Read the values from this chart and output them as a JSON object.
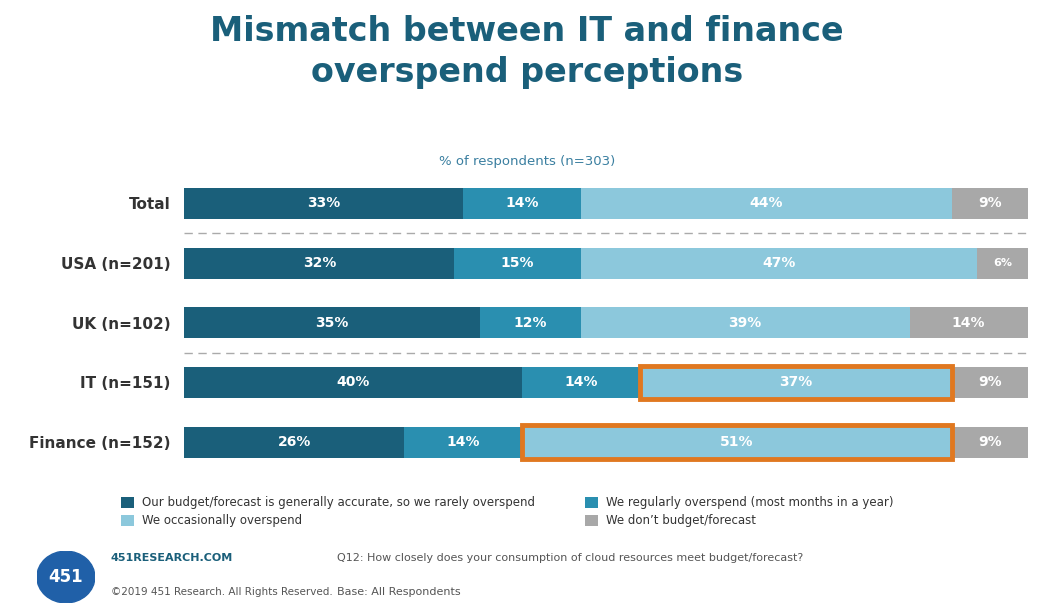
{
  "title": "Mismatch between IT and finance\noverspend perceptions",
  "subtitle": "% of respondents (n=303)",
  "categories": [
    "Total",
    "USA (n=201)",
    "UK (n=102)",
    "IT (n=151)",
    "Finance (n=152)"
  ],
  "data": [
    [
      33,
      14,
      44,
      9
    ],
    [
      32,
      15,
      47,
      6
    ],
    [
      35,
      12,
      39,
      14
    ],
    [
      40,
      14,
      37,
      9
    ],
    [
      26,
      14,
      51,
      9
    ]
  ],
  "bar_colors": [
    "#1a5f7a",
    "#2a8fb0",
    "#8cc8dc",
    "#a8a8a8"
  ],
  "legend_labels": [
    "Our budget/forecast is generally accurate, so we rarely overspend",
    "We regularly overspend (most months in a year)",
    "We occasionally overspend",
    "We don’t budget/forecast"
  ],
  "orange_highlight_rows": [
    3,
    4
  ],
  "orange_color": "#e07820",
  "dashed_line_after_rows": [
    0,
    2
  ],
  "footer_left1": "451RESEARCH.COM",
  "footer_left2": "©2019 451 Research. All Rights Reserved.",
  "footer_right1": "Q12: How closely does your consumption of cloud resources meet budget/forecast?",
  "footer_right2": "Base: All Respondents",
  "background_color": "#ffffff",
  "title_color": "#1a5f7a",
  "subtitle_color": "#3a7fa0"
}
